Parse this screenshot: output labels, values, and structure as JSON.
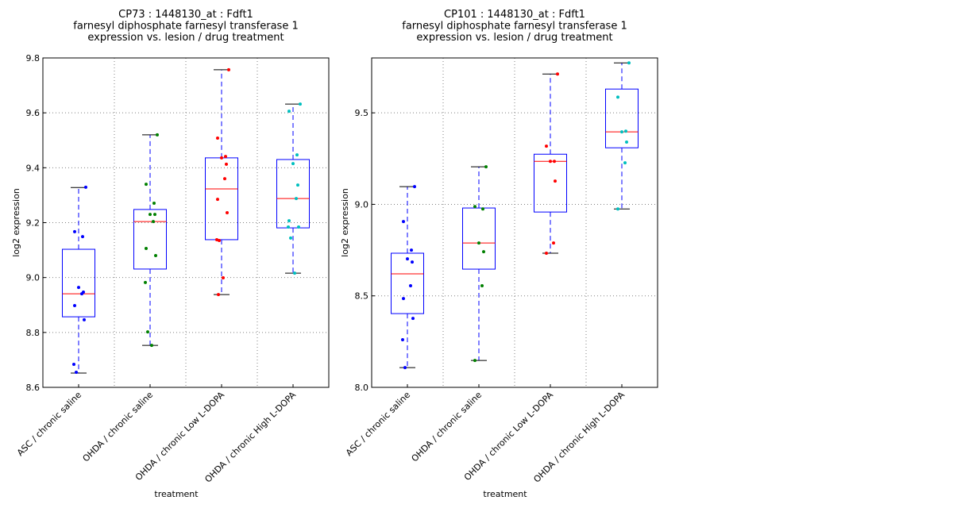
{
  "chart_data": [
    {
      "type": "box",
      "title": [
        "CP73 : 1448130_at : Fdft1",
        "farnesyl diphosphate farnesyl transferase 1",
        "expression vs. lesion / drug treatment"
      ],
      "xlabel": "treatment",
      "ylabel": "log2 expression",
      "ylim": [
        8.6,
        9.8
      ],
      "yticks": [
        8.6,
        8.8,
        9.0,
        9.2,
        9.4,
        9.6,
        9.8
      ],
      "ytick_labels": [
        "8.6",
        "8.8",
        "9.0",
        "9.2",
        "9.4",
        "9.6",
        "9.8"
      ],
      "grid": true,
      "categories": [
        "ASC / chronic saline",
        "OHDA / chronic saline",
        "OHDA / chronic Low L-DOPA",
        "OHDA / chronic High L-DOPA"
      ],
      "groups": [
        {
          "color": "#0000ff",
          "q1": 8.857,
          "median": 8.941,
          "q3": 9.103,
          "whisker_low": 8.652,
          "whisker_high": 9.328,
          "points": [
            9.329,
            9.167,
            9.149,
            8.964,
            8.947,
            8.941,
            8.898,
            8.846,
            8.684,
            8.655
          ]
        },
        {
          "color": "#008000",
          "q1": 9.031,
          "median": 9.204,
          "q3": 9.248,
          "whisker_low": 8.753,
          "whisker_high": 9.52,
          "points": [
            9.52,
            9.34,
            9.271,
            9.23,
            9.23,
            9.204,
            9.106,
            9.08,
            8.982,
            8.802,
            8.753
          ]
        },
        {
          "color": "#ff0000",
          "q1": 9.138,
          "median": 9.323,
          "q3": 9.436,
          "whisker_low": 8.938,
          "whisker_high": 9.757,
          "points": [
            9.757,
            9.508,
            9.441,
            9.436,
            9.413,
            9.36,
            9.285,
            9.236,
            9.138,
            9.135,
            8.999,
            8.938
          ]
        },
        {
          "color": "#00bfbf",
          "q1": 9.181,
          "median": 9.288,
          "q3": 9.43,
          "whisker_low": 9.016,
          "whisker_high": 9.632,
          "points": [
            9.632,
            9.606,
            9.447,
            9.415,
            9.337,
            9.288,
            9.207,
            9.184,
            9.184,
            9.144,
            9.016
          ]
        }
      ]
    },
    {
      "type": "box",
      "title": [
        "CP101 : 1448130_at : Fdft1",
        "farnesyl diphosphate farnesyl transferase 1",
        "expression vs. lesion / drug treatment"
      ],
      "xlabel": "treatment",
      "ylabel": "log2 expression",
      "ylim": [
        8.0,
        9.8
      ],
      "yticks": [
        8.0,
        8.5,
        9.0,
        9.5
      ],
      "ytick_labels": [
        "8.0",
        "8.5",
        "9.0",
        "9.5"
      ],
      "grid": true,
      "categories": [
        "ASC / chronic saline",
        "OHDA / chronic saline",
        "OHDA / chronic Low L-DOPA",
        "OHDA / chronic High L-DOPA"
      ],
      "groups": [
        {
          "color": "#0000ff",
          "q1": 8.403,
          "median": 8.62,
          "q3": 8.733,
          "whisker_low": 8.108,
          "whisker_high": 9.097,
          "points": [
            9.097,
            8.906,
            8.75,
            8.702,
            8.685,
            8.555,
            8.485,
            8.377,
            8.26,
            8.108
          ]
        },
        {
          "color": "#008000",
          "q1": 8.646,
          "median": 8.789,
          "q3": 8.98,
          "whisker_low": 8.147,
          "whisker_high": 9.205,
          "points": [
            9.205,
            8.988,
            8.975,
            8.789,
            8.741,
            8.555,
            8.147
          ]
        },
        {
          "color": "#ff0000",
          "q1": 8.958,
          "median": 9.235,
          "q3": 9.274,
          "whisker_low": 8.733,
          "whisker_high": 9.712,
          "points": [
            9.712,
            9.318,
            9.235,
            9.235,
            9.127,
            8.789,
            8.733
          ]
        },
        {
          "color": "#00bfbf",
          "q1": 9.309,
          "median": 9.396,
          "q3": 9.63,
          "whisker_low": 8.975,
          "whisker_high": 9.773,
          "points": [
            9.773,
            9.586,
            9.4,
            9.396,
            9.34,
            9.227,
            8.975
          ]
        }
      ]
    }
  ],
  "style": {
    "box_color": "#0000ff",
    "median_color": "#ff0000",
    "cap_color": "#000000",
    "grid_color": "#808080"
  }
}
